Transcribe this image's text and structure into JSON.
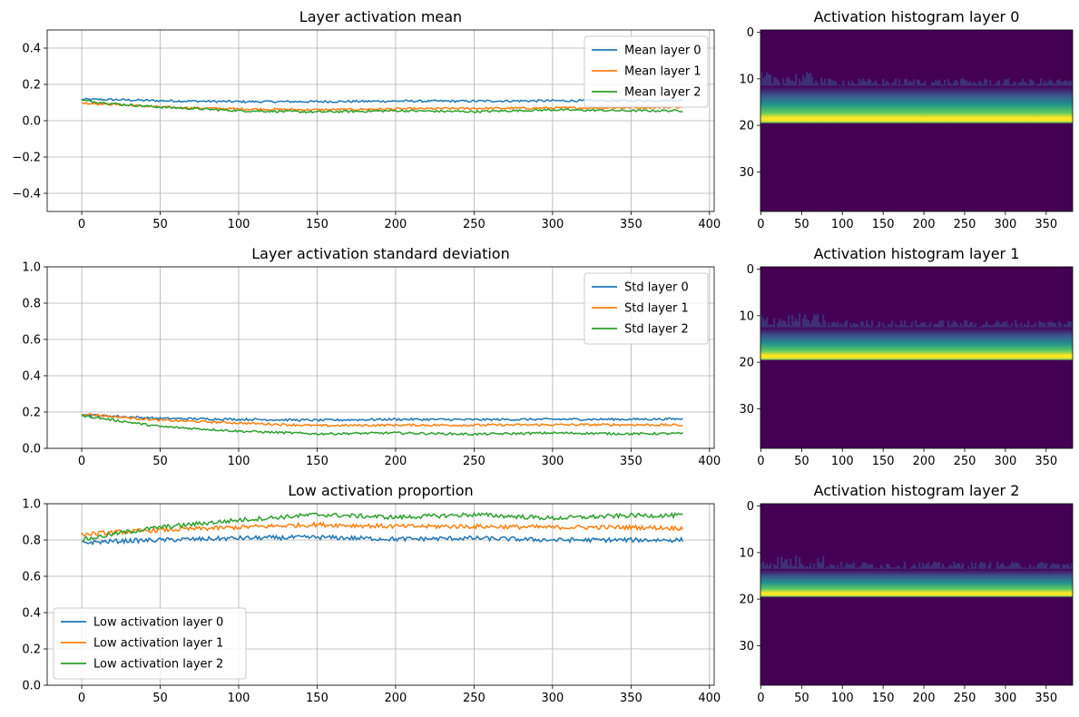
{
  "colors": {
    "layer0": "#1f77b4",
    "layer1": "#ff7f0e",
    "layer2": "#2ca02c",
    "grid": "#b0b0b0",
    "viridis": [
      "#440154",
      "#3b528b",
      "#21918c",
      "#5ec962",
      "#fde725"
    ]
  },
  "chart_data": [
    {
      "id": "mean",
      "type": "line",
      "title": "Layer activation mean",
      "xlim": [
        -22,
        403
      ],
      "ylim": [
        -0.5,
        0.5
      ],
      "xticks": [
        0,
        50,
        100,
        150,
        200,
        250,
        300,
        350,
        400
      ],
      "yticks": [
        -0.4,
        -0.2,
        0.0,
        0.2,
        0.4
      ],
      "grid": true,
      "legend_position": "upper right",
      "series": [
        {
          "name": "Mean layer 0",
          "color_key": "layer0",
          "x": [
            0,
            25,
            50,
            100,
            150,
            200,
            250,
            300,
            350,
            383
          ],
          "y": [
            0.118,
            0.115,
            0.11,
            0.105,
            0.105,
            0.108,
            0.108,
            0.11,
            0.11,
            0.112
          ]
        },
        {
          "name": "Mean layer 1",
          "color_key": "layer1",
          "x": [
            0,
            25,
            50,
            100,
            150,
            200,
            250,
            300,
            350,
            383
          ],
          "y": [
            0.098,
            0.088,
            0.075,
            0.065,
            0.06,
            0.065,
            0.068,
            0.07,
            0.072,
            0.075
          ]
        },
        {
          "name": "Mean layer 2",
          "color_key": "layer2",
          "x": [
            0,
            25,
            50,
            100,
            150,
            200,
            250,
            300,
            350,
            383
          ],
          "y": [
            0.112,
            0.09,
            0.075,
            0.055,
            0.048,
            0.055,
            0.05,
            0.06,
            0.055,
            0.055
          ]
        }
      ]
    },
    {
      "id": "std",
      "type": "line",
      "title": "Layer activation standard deviation",
      "xlim": [
        -22,
        403
      ],
      "ylim": [
        0.0,
        1.0
      ],
      "xticks": [
        0,
        50,
        100,
        150,
        200,
        250,
        300,
        350,
        400
      ],
      "yticks": [
        0.0,
        0.2,
        0.4,
        0.6,
        0.8,
        1.0
      ],
      "grid": true,
      "legend_position": "upper right",
      "series": [
        {
          "name": "Std layer 0",
          "color_key": "layer0",
          "x": [
            0,
            25,
            50,
            100,
            150,
            200,
            250,
            300,
            350,
            383
          ],
          "y": [
            0.185,
            0.175,
            0.165,
            0.16,
            0.155,
            0.16,
            0.158,
            0.16,
            0.16,
            0.162
          ]
        },
        {
          "name": "Std layer 1",
          "color_key": "layer1",
          "x": [
            0,
            25,
            50,
            100,
            150,
            200,
            250,
            300,
            350,
            383
          ],
          "y": [
            0.19,
            0.172,
            0.155,
            0.14,
            0.125,
            0.128,
            0.128,
            0.13,
            0.13,
            0.128
          ]
        },
        {
          "name": "Std layer 2",
          "color_key": "layer2",
          "x": [
            0,
            25,
            50,
            100,
            150,
            200,
            250,
            300,
            350,
            383
          ],
          "y": [
            0.18,
            0.15,
            0.12,
            0.095,
            0.08,
            0.085,
            0.078,
            0.085,
            0.08,
            0.082
          ]
        }
      ]
    },
    {
      "id": "low",
      "type": "line",
      "title": "Low activation proportion",
      "xlim": [
        -22,
        403
      ],
      "ylim": [
        0.0,
        1.0
      ],
      "xticks": [
        0,
        50,
        100,
        150,
        200,
        250,
        300,
        350,
        400
      ],
      "yticks": [
        0.0,
        0.2,
        0.4,
        0.6,
        0.8,
        1.0
      ],
      "grid": true,
      "legend_position": "lower left",
      "series": [
        {
          "name": "Low activation layer 0",
          "color_key": "layer0",
          "x": [
            0,
            25,
            50,
            100,
            150,
            200,
            250,
            300,
            350,
            383
          ],
          "y": [
            0.785,
            0.795,
            0.8,
            0.81,
            0.815,
            0.805,
            0.81,
            0.8,
            0.8,
            0.8
          ]
        },
        {
          "name": "Low activation layer 1",
          "color_key": "layer1",
          "x": [
            0,
            25,
            50,
            100,
            150,
            200,
            250,
            300,
            350,
            383
          ],
          "y": [
            0.83,
            0.845,
            0.855,
            0.87,
            0.885,
            0.875,
            0.875,
            0.87,
            0.87,
            0.865
          ]
        },
        {
          "name": "Low activation layer 2",
          "color_key": "layer2",
          "x": [
            0,
            25,
            50,
            100,
            150,
            200,
            250,
            300,
            350,
            383
          ],
          "y": [
            0.8,
            0.84,
            0.87,
            0.91,
            0.94,
            0.925,
            0.94,
            0.92,
            0.935,
            0.935
          ]
        }
      ]
    },
    {
      "id": "hist0",
      "type": "heatmap",
      "title": "Activation histogram layer 0",
      "xlim": [
        0,
        383
      ],
      "ylim": [
        0,
        39
      ],
      "xticks": [
        0,
        50,
        100,
        150,
        200,
        250,
        300,
        350
      ],
      "yticks": [
        0,
        10,
        20,
        30
      ],
      "band": {
        "low_bin": 12,
        "high_bin": 20,
        "peak_bin": 18
      }
    },
    {
      "id": "hist1",
      "type": "heatmap",
      "title": "Activation histogram layer 1",
      "xlim": [
        0,
        383
      ],
      "ylim": [
        0,
        39
      ],
      "xticks": [
        0,
        50,
        100,
        150,
        200,
        250,
        300,
        350
      ],
      "yticks": [
        0,
        10,
        20,
        30
      ],
      "band": {
        "low_bin": 13,
        "high_bin": 20,
        "peak_bin": 19
      }
    },
    {
      "id": "hist2",
      "type": "heatmap",
      "title": "Activation histogram layer 2",
      "xlim": [
        0,
        383
      ],
      "ylim": [
        0,
        39
      ],
      "xticks": [
        0,
        50,
        100,
        150,
        200,
        250,
        300,
        350
      ],
      "yticks": [
        0,
        10,
        20,
        30
      ],
      "band": {
        "low_bin": 14,
        "high_bin": 20,
        "peak_bin": 19
      }
    }
  ]
}
